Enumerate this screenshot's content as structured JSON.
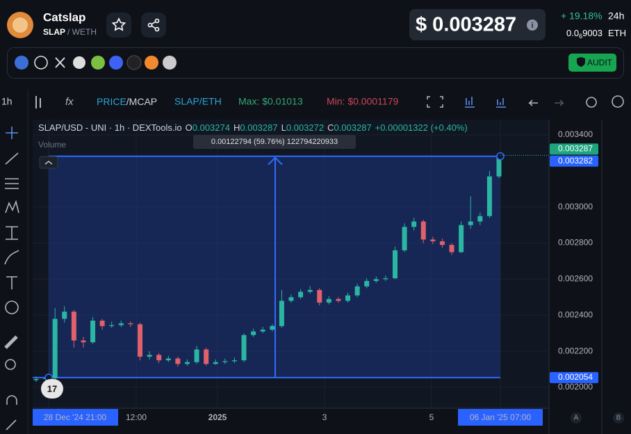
{
  "header": {
    "name": "Catslap",
    "base": "SLAP",
    "quote": "/ WETH",
    "price": "$ 0.003287",
    "change": "+ 19.18%",
    "period": "24h",
    "price_eth": {
      "lead": "0.0",
      "sub": "6",
      "rest": "9003"
    },
    "eth": "ETH",
    "audit": "AUDIT"
  },
  "toolbar": {
    "interval": "1h",
    "price": "PRICE",
    "mcap": "/MCAP",
    "pair": "SLAP/ETH",
    "max": "Max: $0.01013",
    "min": "Min: $0.0001179"
  },
  "chart": {
    "legend": {
      "symbol": "SLAP/USD - UNI · 1h · DEXTools.io",
      "o": "O",
      "ov": "0.003274",
      "h": "H",
      "hv": "0.003287",
      "l": "L",
      "lv": "0.003272",
      "c": "C",
      "cv": "0.003287",
      "chg": "+0.00001322 (+0.40%)"
    },
    "volume": "Volume",
    "measure_label": "0.00122794 (59.76%) 122794220933",
    "ylim": [
      0.001884,
      0.003485
    ],
    "yticks": [
      {
        "value": 0.0034,
        "label": "0.003400"
      },
      {
        "value": 0.003,
        "label": "0.003000"
      },
      {
        "value": 0.0028,
        "label": "0.002800"
      },
      {
        "value": 0.0026,
        "label": "0.002600"
      },
      {
        "value": 0.0024,
        "label": "0.002400"
      },
      {
        "value": 0.0022,
        "label": "0.002200"
      },
      {
        "value": 0.002,
        "label": "0.002000"
      }
    ],
    "last_price": 0.003287,
    "measure_high": 0.003282,
    "measure_low": 0.002054,
    "x_labels": [
      "28 Dec '24  21:00",
      "12:00",
      "2025",
      "3",
      "5",
      "06 Jan '25  07:00"
    ],
    "scales": [
      "A",
      "B"
    ],
    "up_color": "#2bb5a3",
    "down_color": "#e0606c",
    "open": [
      0.00204,
      0.002046,
      0.00205,
      0.00238,
      0.00242,
      0.00226,
      0.00225,
      0.00237,
      0.00234,
      0.002345,
      0.002355,
      0.00235,
      0.00217,
      0.00218,
      0.00215,
      0.00216,
      0.00213,
      0.00214,
      0.00221,
      0.00213,
      0.00214,
      0.002145,
      0.00215,
      0.00229,
      0.00231,
      0.00232,
      0.00234,
      0.00248,
      0.0025,
      0.00253,
      0.00254,
      0.00247,
      0.00249,
      0.00248,
      0.00251,
      0.00256,
      0.00259,
      0.0026,
      0.002605,
      0.00276,
      0.00289,
      0.00292,
      0.00282,
      0.00281,
      0.00279,
      0.00275,
      0.0029,
      0.00292,
      0.00295,
      0.00317
    ],
    "high": [
      0.00206,
      0.002062,
      0.00244,
      0.00245,
      0.00243,
      0.00228,
      0.00239,
      0.00238,
      0.002365,
      0.00237,
      0.002365,
      0.00236,
      0.0022,
      0.00219,
      0.002175,
      0.00217,
      0.002155,
      0.00223,
      0.00222,
      0.002155,
      0.00216,
      0.002165,
      0.0023,
      0.002325,
      0.002335,
      0.00235,
      0.00254,
      0.002515,
      0.002545,
      0.00256,
      0.00255,
      0.002505,
      0.0025,
      0.002525,
      0.002575,
      0.002605,
      0.002615,
      0.00262,
      0.00278,
      0.00291,
      0.00294,
      0.00293,
      0.002835,
      0.002825,
      0.0028,
      0.00292,
      0.00306,
      0.00297,
      0.0032,
      0.0033
    ],
    "low": [
      0.00203,
      0.002036,
      0.002045,
      0.00236,
      0.00222,
      0.00222,
      0.00224,
      0.00232,
      0.00233,
      0.002335,
      0.002335,
      0.00215,
      0.002155,
      0.002135,
      0.00214,
      0.002115,
      0.00212,
      0.00213,
      0.00212,
      0.002125,
      0.00213,
      0.002135,
      0.00214,
      0.00228,
      0.0023,
      0.00231,
      0.00233,
      0.00247,
      0.00249,
      0.00252,
      0.002455,
      0.00246,
      0.00247,
      0.00247,
      0.0025,
      0.00255,
      0.00258,
      0.00259,
      0.0026,
      0.00275,
      0.00287,
      0.0028,
      0.002795,
      0.002775,
      0.002735,
      0.002745,
      0.00288,
      0.0029,
      0.00294,
      0.00316
    ],
    "close": [
      0.002046,
      0.00205,
      0.00238,
      0.00242,
      0.00226,
      0.00225,
      0.00237,
      0.00234,
      0.002345,
      0.002355,
      0.00235,
      0.00217,
      0.00218,
      0.00215,
      0.00216,
      0.00213,
      0.00214,
      0.00221,
      0.00213,
      0.00214,
      0.002145,
      0.00215,
      0.00229,
      0.00231,
      0.00232,
      0.00234,
      0.00248,
      0.0025,
      0.00253,
      0.00254,
      0.00247,
      0.00249,
      0.00248,
      0.00251,
      0.00256,
      0.00259,
      0.0026,
      0.002605,
      0.00276,
      0.00289,
      0.00292,
      0.00282,
      0.00281,
      0.00279,
      0.00275,
      0.0029,
      0.00292,
      0.00295,
      0.00317,
      0.003287
    ]
  }
}
